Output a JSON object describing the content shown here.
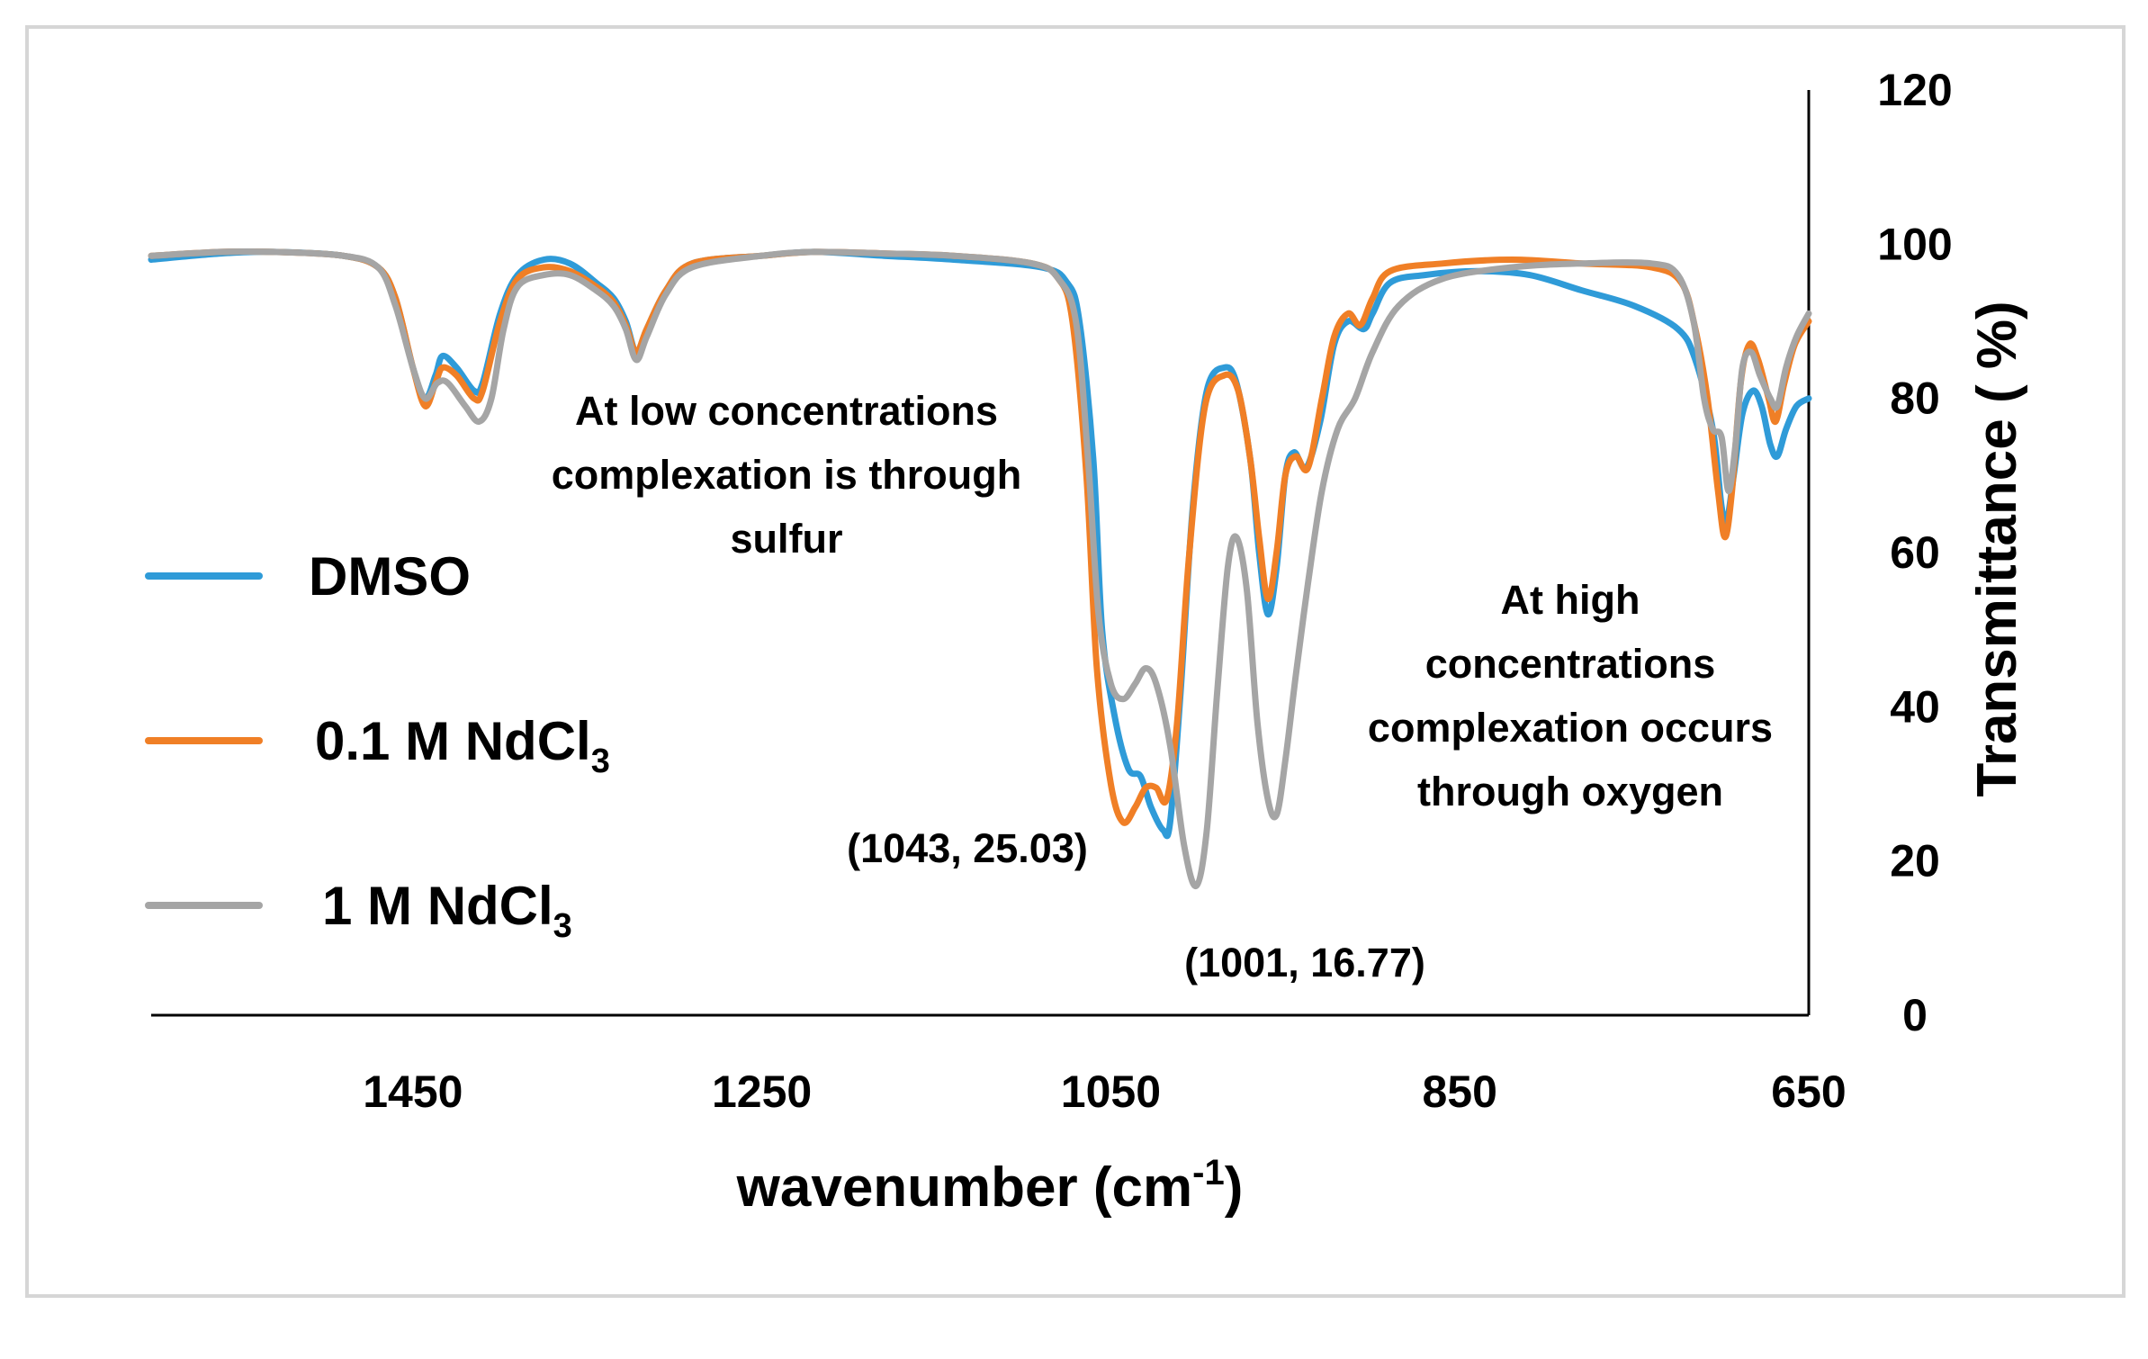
{
  "chart_data": {
    "type": "line",
    "title": "",
    "xlabel": "wavenumber (cm",
    "xlabel_sup": "-1",
    "xlabel_end": ")",
    "ylabel": "Transmittance ( %)",
    "xlim": [
      1600,
      650
    ],
    "ylim": [
      0,
      120
    ],
    "x_reversed": true,
    "y_axis_side": "right",
    "x_ticks": [
      1450,
      1250,
      1050,
      850,
      650
    ],
    "y_ticks": [
      0,
      20,
      40,
      60,
      80,
      100,
      120
    ],
    "grid": false,
    "legend_position": "left",
    "series": [
      {
        "name": "DMSO",
        "label_main": "DMSO",
        "label_sub": "",
        "color": "#2f9bd8",
        "points": [
          [
            1600,
            98
          ],
          [
            1560,
            98.8
          ],
          [
            1530,
            99
          ],
          [
            1490,
            98.5
          ],
          [
            1470,
            97
          ],
          [
            1460,
            93
          ],
          [
            1450,
            84
          ],
          [
            1443,
            80
          ],
          [
            1437,
            83
          ],
          [
            1433,
            85.5
          ],
          [
            1425,
            84
          ],
          [
            1415,
            81
          ],
          [
            1410,
            82
          ],
          [
            1400,
            91
          ],
          [
            1390,
            96
          ],
          [
            1375,
            98
          ],
          [
            1360,
            97.5
          ],
          [
            1345,
            95
          ],
          [
            1335,
            93
          ],
          [
            1328,
            90
          ],
          [
            1322,
            86
          ],
          [
            1316,
            89
          ],
          [
            1305,
            94
          ],
          [
            1290,
            97.5
          ],
          [
            1250,
            98.5
          ],
          [
            1220,
            99
          ],
          [
            1180,
            98.5
          ],
          [
            1140,
            98
          ],
          [
            1090,
            97
          ],
          [
            1075,
            95
          ],
          [
            1068,
            90
          ],
          [
            1060,
            72
          ],
          [
            1055,
            50
          ],
          [
            1048,
            39
          ],
          [
            1040,
            32
          ],
          [
            1033,
            31
          ],
          [
            1027,
            27
          ],
          [
            1020,
            24
          ],
          [
            1016,
            25
          ],
          [
            1010,
            42
          ],
          [
            1003,
            66
          ],
          [
            995,
            81
          ],
          [
            985,
            84
          ],
          [
            978,
            82
          ],
          [
            970,
            72
          ],
          [
            965,
            60
          ],
          [
            960,
            52
          ],
          [
            955,
            58
          ],
          [
            950,
            70
          ],
          [
            945,
            73
          ],
          [
            938,
            71
          ],
          [
            930,
            77
          ],
          [
            922,
            87
          ],
          [
            914,
            90
          ],
          [
            905,
            89
          ],
          [
            900,
            91
          ],
          [
            890,
            95
          ],
          [
            870,
            96
          ],
          [
            840,
            96.5
          ],
          [
            810,
            96
          ],
          [
            780,
            94
          ],
          [
            750,
            92
          ],
          [
            725,
            89
          ],
          [
            715,
            85
          ],
          [
            705,
            76
          ],
          [
            700,
            66
          ],
          [
            697,
            64
          ],
          [
            693,
            70
          ],
          [
            688,
            78
          ],
          [
            682,
            81
          ],
          [
            677,
            79
          ],
          [
            672,
            74
          ],
          [
            668,
            72.5
          ],
          [
            663,
            76
          ],
          [
            657,
            79
          ],
          [
            650,
            80
          ]
        ]
      },
      {
        "name": "0.1 M NdCl3",
        "label_main": "0.1 M NdCl",
        "label_sub": "3",
        "color": "#f07f26",
        "points": [
          [
            1600,
            98.5
          ],
          [
            1560,
            99
          ],
          [
            1530,
            99
          ],
          [
            1490,
            98.5
          ],
          [
            1470,
            97
          ],
          [
            1460,
            93
          ],
          [
            1450,
            84
          ],
          [
            1443,
            79
          ],
          [
            1437,
            82
          ],
          [
            1433,
            84
          ],
          [
            1425,
            83
          ],
          [
            1415,
            80
          ],
          [
            1410,
            81
          ],
          [
            1400,
            90
          ],
          [
            1390,
            95.5
          ],
          [
            1375,
            97
          ],
          [
            1360,
            96.5
          ],
          [
            1345,
            94.5
          ],
          [
            1335,
            92.5
          ],
          [
            1328,
            89.5
          ],
          [
            1322,
            86
          ],
          [
            1316,
            89
          ],
          [
            1305,
            94
          ],
          [
            1290,
            97.5
          ],
          [
            1250,
            98.5
          ],
          [
            1220,
            99
          ],
          [
            1180,
            98.8
          ],
          [
            1140,
            98.5
          ],
          [
            1095,
            97.5
          ],
          [
            1080,
            95.5
          ],
          [
            1072,
            90
          ],
          [
            1064,
            70
          ],
          [
            1058,
            45
          ],
          [
            1050,
            30
          ],
          [
            1043,
            25.03
          ],
          [
            1036,
            27
          ],
          [
            1030,
            29.5
          ],
          [
            1024,
            29.5
          ],
          [
            1018,
            28
          ],
          [
            1012,
            38
          ],
          [
            1005,
            60
          ],
          [
            996,
            79
          ],
          [
            985,
            83
          ],
          [
            977,
            81
          ],
          [
            970,
            72
          ],
          [
            965,
            62
          ],
          [
            960,
            54
          ],
          [
            955,
            60
          ],
          [
            950,
            70
          ],
          [
            944,
            72.5
          ],
          [
            937,
            71
          ],
          [
            929,
            80
          ],
          [
            922,
            88
          ],
          [
            914,
            91
          ],
          [
            907,
            89.5
          ],
          [
            900,
            93
          ],
          [
            890,
            96.5
          ],
          [
            860,
            97.5
          ],
          [
            820,
            98
          ],
          [
            780,
            97.5
          ],
          [
            740,
            97
          ],
          [
            723,
            95
          ],
          [
            715,
            89
          ],
          [
            708,
            80
          ],
          [
            702,
            68
          ],
          [
            698,
            62
          ],
          [
            694,
            68
          ],
          [
            689,
            82
          ],
          [
            684,
            87
          ],
          [
            679,
            85
          ],
          [
            673,
            80
          ],
          [
            669,
            77
          ],
          [
            664,
            82
          ],
          [
            658,
            87
          ],
          [
            650,
            90
          ]
        ]
      },
      {
        "name": "1 M NdCl3",
        "label_main": "1 M NdCl",
        "label_sub": "3",
        "color": "#a5a5a5",
        "points": [
          [
            1600,
            98.5
          ],
          [
            1560,
            99
          ],
          [
            1530,
            99
          ],
          [
            1490,
            98.5
          ],
          [
            1470,
            97
          ],
          [
            1460,
            92
          ],
          [
            1450,
            84
          ],
          [
            1443,
            80
          ],
          [
            1436,
            82
          ],
          [
            1430,
            82
          ],
          [
            1420,
            79
          ],
          [
            1412,
            77
          ],
          [
            1405,
            80
          ],
          [
            1398,
            89
          ],
          [
            1390,
            94.5
          ],
          [
            1375,
            96
          ],
          [
            1360,
            96
          ],
          [
            1345,
            94
          ],
          [
            1335,
            92
          ],
          [
            1328,
            89
          ],
          [
            1322,
            85
          ],
          [
            1316,
            88
          ],
          [
            1305,
            93.5
          ],
          [
            1290,
            97
          ],
          [
            1250,
            98.5
          ],
          [
            1220,
            99
          ],
          [
            1180,
            98.8
          ],
          [
            1140,
            98.5
          ],
          [
            1095,
            97.5
          ],
          [
            1080,
            95.5
          ],
          [
            1070,
            90
          ],
          [
            1063,
            72
          ],
          [
            1057,
            52
          ],
          [
            1050,
            43
          ],
          [
            1043,
            41
          ],
          [
            1036,
            43
          ],
          [
            1030,
            45
          ],
          [
            1024,
            43
          ],
          [
            1016,
            35
          ],
          [
            1008,
            22
          ],
          [
            1001,
            16.77
          ],
          [
            995,
            24
          ],
          [
            989,
            42
          ],
          [
            983,
            58
          ],
          [
            978,
            62
          ],
          [
            972,
            55
          ],
          [
            966,
            38
          ],
          [
            960,
            28
          ],
          [
            955,
            26
          ],
          [
            950,
            33
          ],
          [
            944,
            44
          ],
          [
            937,
            56
          ],
          [
            929,
            68
          ],
          [
            920,
            76
          ],
          [
            910,
            80
          ],
          [
            900,
            86
          ],
          [
            885,
            92
          ],
          [
            860,
            95.5
          ],
          [
            820,
            97
          ],
          [
            780,
            97.5
          ],
          [
            740,
            97.5
          ],
          [
            725,
            96
          ],
          [
            716,
            90
          ],
          [
            710,
            80
          ],
          [
            705,
            76
          ],
          [
            700,
            75
          ],
          [
            696,
            68
          ],
          [
            692,
            74
          ],
          [
            688,
            84
          ],
          [
            683,
            86
          ],
          [
            678,
            83
          ],
          [
            672,
            80
          ],
          [
            668,
            79
          ],
          [
            663,
            84
          ],
          [
            657,
            88
          ],
          [
            650,
            91
          ]
        ]
      }
    ],
    "annotations": {
      "low_conc": [
        "At low concentrations",
        "complexation is through",
        "sulfur"
      ],
      "high_conc": [
        "At high",
        "concentrations",
        "complexation occurs",
        "through oxygen"
      ],
      "peak_orange": "(1043, 25.03)",
      "peak_gray": "(1001, 16.77)"
    }
  }
}
